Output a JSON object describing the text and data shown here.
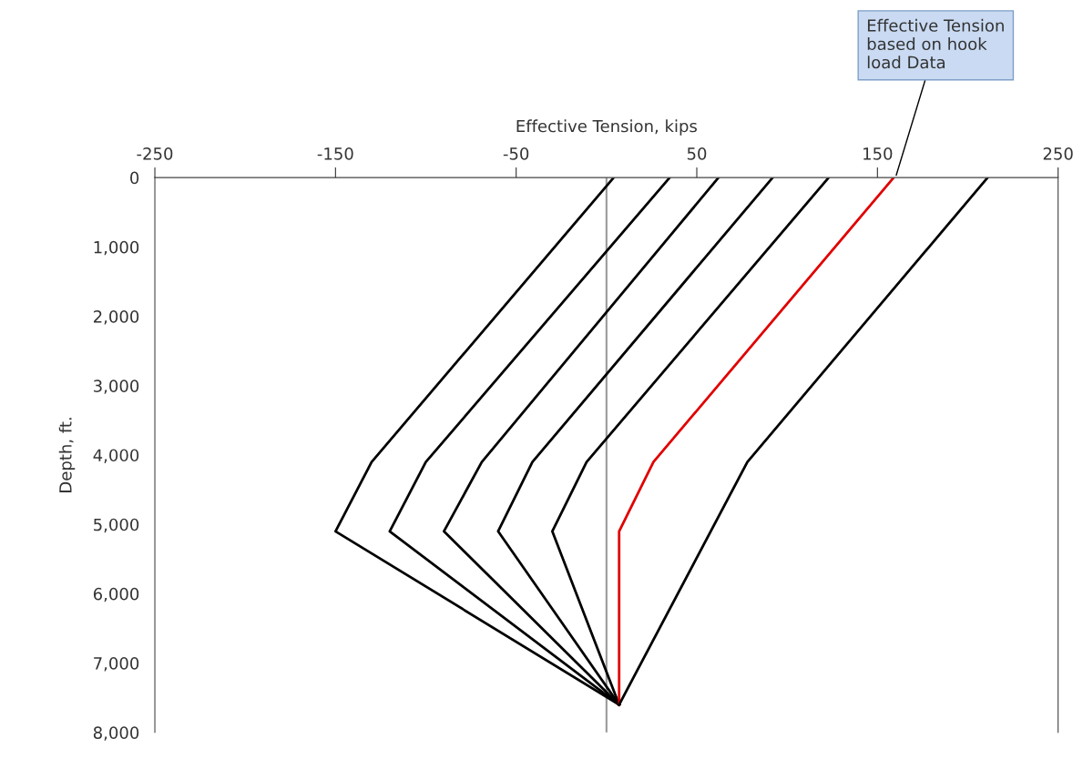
{
  "chart_data": {
    "type": "line",
    "xlabel": "Effective Tension, kips",
    "ylabel": "Depth, ft.",
    "xlim": [
      -250,
      250
    ],
    "xticks": [
      -250,
      -150,
      -50,
      50,
      150,
      250
    ],
    "ylim": [
      8000,
      0
    ],
    "yticks": [
      0,
      {
        "value": 1000,
        "label": "1,000"
      },
      {
        "value": 2000,
        "label": "2,000"
      },
      {
        "value": 3000,
        "label": "3,000"
      },
      {
        "value": 4000,
        "label": "4,000"
      },
      {
        "value": 5000,
        "label": "5,000"
      },
      {
        "value": 6000,
        "label": "6,000"
      },
      {
        "value": 7000,
        "label": "7,000"
      },
      {
        "value": 8000,
        "label": "8,000"
      }
    ],
    "grid": false,
    "legend": false,
    "marker": "none",
    "line_style": "solid",
    "series": [
      {
        "color": "#000000",
        "x": [
          4,
          -130,
          -150,
          7
        ],
        "values": [
          0,
          4100,
          5100,
          7600
        ]
      },
      {
        "color": "#000000",
        "x": [
          35,
          -100,
          -120,
          7
        ],
        "values": [
          0,
          4100,
          5100,
          7600
        ]
      },
      {
        "color": "#000000",
        "x": [
          62,
          -69,
          -90,
          7
        ],
        "values": [
          0,
          4100,
          5100,
          7600
        ]
      },
      {
        "color": "#000000",
        "x": [
          92,
          -41,
          -60,
          7
        ],
        "values": [
          0,
          4100,
          5100,
          7600
        ]
      },
      {
        "color": "#000000",
        "x": [
          123,
          -11,
          -30,
          7
        ],
        "values": [
          0,
          4100,
          5100,
          7600
        ]
      },
      {
        "color": "#e00000",
        "x": [
          159,
          26,
          7,
          7
        ],
        "values": [
          0,
          4100,
          5100,
          7600
        ]
      },
      {
        "color": "#000000",
        "x": [
          211,
          78,
          7
        ],
        "values": [
          0,
          4100,
          7600
        ]
      }
    ],
    "ref_lines": [
      {
        "axis": "x",
        "value": 0,
        "color": "#999999"
      }
    ],
    "annotations": [
      {
        "text": "Effective Tension\nbased on hook\nload Data",
        "x": 160,
        "y": 0
      }
    ]
  }
}
